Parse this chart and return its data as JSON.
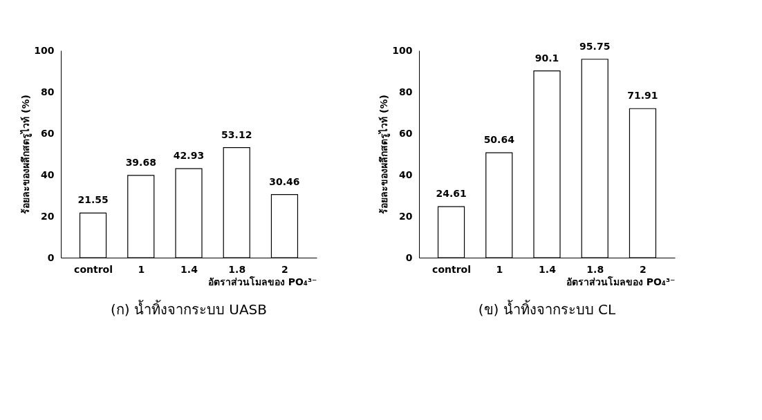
{
  "chart_data": [
    {
      "type": "bar",
      "ylabel": "ร้อยละของผลึกสตรูไวท์ (%)",
      "xlabel": "อัตราส่วนโมลของ PO₄³⁻",
      "categories": [
        "control",
        "1",
        "1.4",
        "1.8",
        "2"
      ],
      "values": [
        21.55,
        39.68,
        42.93,
        53.12,
        30.46
      ],
      "color": "#ffffff",
      "ylim": [
        0,
        100
      ],
      "yticks": [
        0,
        20,
        40,
        60,
        80,
        100
      ],
      "data_labels": true,
      "grid": false,
      "annotations": [
        "(ก) น้ำทิ้งจากระบบ UASB"
      ]
    },
    {
      "type": "bar",
      "ylabel": "ร้อยละของผลึกสตรูไวท์ (%)",
      "xlabel": "อัตราส่วนโมลของ PO₄³⁻",
      "categories": [
        "control",
        "1",
        "1.4",
        "1.8",
        "2"
      ],
      "values": [
        24.61,
        50.64,
        90.1,
        95.75,
        71.91
      ],
      "color": "#ffffff",
      "ylim": [
        0,
        100
      ],
      "yticks": [
        0,
        20,
        40,
        60,
        80,
        100
      ],
      "data_labels": true,
      "grid": false,
      "annotations": [
        "(ข) น้ำทิ้งจากระบบ CL"
      ]
    }
  ]
}
